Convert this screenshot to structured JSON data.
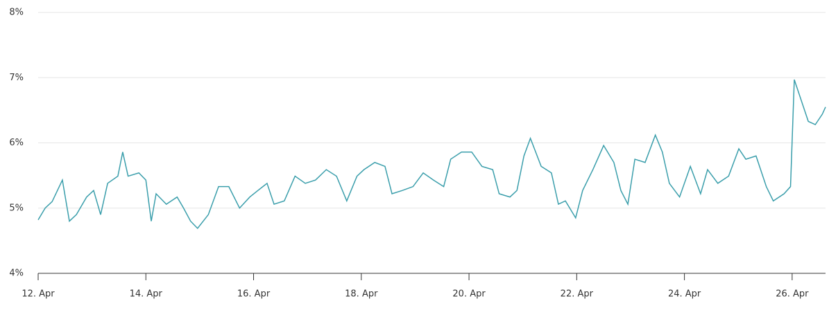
{
  "chart_data": {
    "type": "line",
    "x": [
      12.0,
      12.13,
      12.26,
      12.45,
      12.58,
      12.71,
      12.9,
      13.03,
      13.16,
      13.29,
      13.48,
      13.57,
      13.67,
      13.87,
      14.0,
      14.1,
      14.19,
      14.38,
      14.58,
      14.7,
      14.83,
      14.96,
      15.16,
      15.35,
      15.54,
      15.74,
      15.93,
      16.08,
      16.25,
      16.38,
      16.57,
      16.77,
      16.96,
      17.15,
      17.35,
      17.54,
      17.73,
      17.92,
      18.05,
      18.25,
      18.44,
      18.57,
      18.76,
      18.96,
      19.15,
      19.34,
      19.53,
      19.66,
      19.86,
      20.05,
      20.24,
      20.44,
      20.56,
      20.76,
      20.89,
      21.02,
      21.14,
      21.34,
      21.53,
      21.66,
      21.79,
      21.98,
      22.11,
      22.3,
      22.5,
      22.69,
      22.82,
      22.95,
      23.08,
      23.27,
      23.46,
      23.59,
      23.72,
      23.91,
      24.11,
      24.3,
      24.43,
      24.62,
      24.82,
      25.01,
      25.14,
      25.33,
      25.52,
      25.65,
      25.85,
      25.97,
      26.04,
      26.17,
      26.3,
      26.43,
      26.56,
      26.62
    ],
    "series": [
      {
        "color": "#3a9eab",
        "values": [
          4.82,
          5.0,
          5.1,
          5.43,
          4.8,
          4.9,
          5.17,
          5.27,
          4.9,
          5.38,
          5.49,
          5.86,
          5.49,
          5.54,
          5.43,
          4.8,
          5.22,
          5.06,
          5.17,
          5.0,
          4.8,
          4.69,
          4.9,
          5.33,
          5.33,
          5.0,
          5.17,
          5.27,
          5.38,
          5.06,
          5.11,
          5.49,
          5.38,
          5.43,
          5.59,
          5.49,
          5.11,
          5.49,
          5.59,
          5.7,
          5.64,
          5.22,
          5.27,
          5.33,
          5.54,
          5.43,
          5.33,
          5.75,
          5.86,
          5.86,
          5.64,
          5.59,
          5.22,
          5.17,
          5.27,
          5.8,
          6.07,
          5.64,
          5.54,
          5.06,
          5.11,
          4.85,
          5.27,
          5.59,
          5.96,
          5.7,
          5.27,
          5.06,
          5.75,
          5.7,
          6.12,
          5.86,
          5.38,
          5.17,
          5.64,
          5.22,
          5.59,
          5.38,
          5.49,
          5.91,
          5.75,
          5.8,
          5.33,
          5.11,
          5.22,
          5.33,
          6.97,
          6.65,
          6.33,
          6.28,
          6.44,
          6.55
        ]
      }
    ],
    "xlim": [
      12,
      26.62
    ],
    "xticks": [
      {
        "value": 12,
        "label": "12. Apr"
      },
      {
        "value": 14,
        "label": "14. Apr"
      },
      {
        "value": 16,
        "label": "16. Apr"
      },
      {
        "value": 18,
        "label": "18. Apr"
      },
      {
        "value": 20,
        "label": "20. Apr"
      },
      {
        "value": 22,
        "label": "22. Apr"
      },
      {
        "value": 24,
        "label": "24. Apr"
      },
      {
        "value": 26,
        "label": "26. Apr"
      }
    ],
    "ylim": [
      4,
      8
    ],
    "yticks": [
      {
        "value": 4,
        "label": "4%"
      },
      {
        "value": 5,
        "label": "5%"
      },
      {
        "value": 6,
        "label": "6%"
      },
      {
        "value": 7,
        "label": "7%"
      },
      {
        "value": 8,
        "label": "8%"
      }
    ],
    "grid": true
  }
}
